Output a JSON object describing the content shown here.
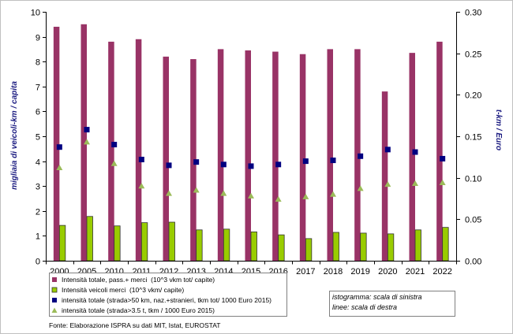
{
  "chart_data": {
    "type": "bar",
    "categories": [
      "2000",
      "2005",
      "2010",
      "2011",
      "2012",
      "2013",
      "2014",
      "2015",
      "2016",
      "2017",
      "2018",
      "2019",
      "2020",
      "2021",
      "2022"
    ],
    "series": [
      {
        "name": "Intensità totale, pass.+ merci  (10^3 vkm tot/ capite)",
        "type": "bar",
        "axis": "left",
        "color": "#993366",
        "values": [
          9.4,
          9.5,
          8.8,
          8.9,
          8.2,
          8.1,
          8.5,
          8.45,
          8.4,
          8.3,
          8.5,
          8.5,
          6.8,
          8.35,
          8.8
        ]
      },
      {
        "name": "Intensità veicoli merci  (10^3 vkm/ capite)",
        "type": "bar",
        "axis": "left",
        "color": "#99CC00",
        "border_color": "#333333",
        "values": [
          1.42,
          1.78,
          1.4,
          1.53,
          1.55,
          1.24,
          1.27,
          1.16,
          1.04,
          0.89,
          1.14,
          1.11,
          1.08,
          1.24,
          1.34
        ]
      },
      {
        "name": "intensità totale (strada>50 km, naz.+stranieri, tkm tot/ 1000 Euro 2015)",
        "type": "scatter",
        "marker": "square",
        "axis": "right",
        "color": "#000080",
        "values": [
          0.137,
          0.158,
          0.14,
          0.122,
          0.115,
          0.119,
          0.116,
          0.114,
          0.116,
          0.12,
          0.121,
          0.126,
          0.134,
          0.131,
          0.123
        ]
      },
      {
        "name": "intensità totale (strada>3.5 t, tkm / 1000 Euro 2015)",
        "type": "scatter",
        "marker": "triangle",
        "axis": "right",
        "color": "#9BBB59",
        "values": [
          0.112,
          0.143,
          0.117,
          0.09,
          0.081,
          0.085,
          0.081,
          0.078,
          0.074,
          0.077,
          0.08,
          0.087,
          0.092,
          0.093,
          0.094
        ]
      }
    ],
    "ylabel": "migliaia di veicoli-km / capita",
    "y2label": "t-km / Euro",
    "ylim": [
      0,
      10
    ],
    "y2lim": [
      0,
      0.3
    ],
    "yticks": [
      "0",
      "1",
      "2",
      "3",
      "4",
      "5",
      "6",
      "7",
      "8",
      "9",
      "10"
    ],
    "y2ticks": [
      "0.00",
      "0.05",
      "0.10",
      "0.15",
      "0.20",
      "0.25",
      "0.30"
    ],
    "grid": false,
    "legend": "bottom-left",
    "annotations": [
      "istogramma: scala di sinistra",
      "linee: scala di destra"
    ],
    "axis_title_color": "#1A1A80"
  },
  "source": "Fonte: Elaborazione ISPRA su dati MIT, Istat, EUROSTAT"
}
